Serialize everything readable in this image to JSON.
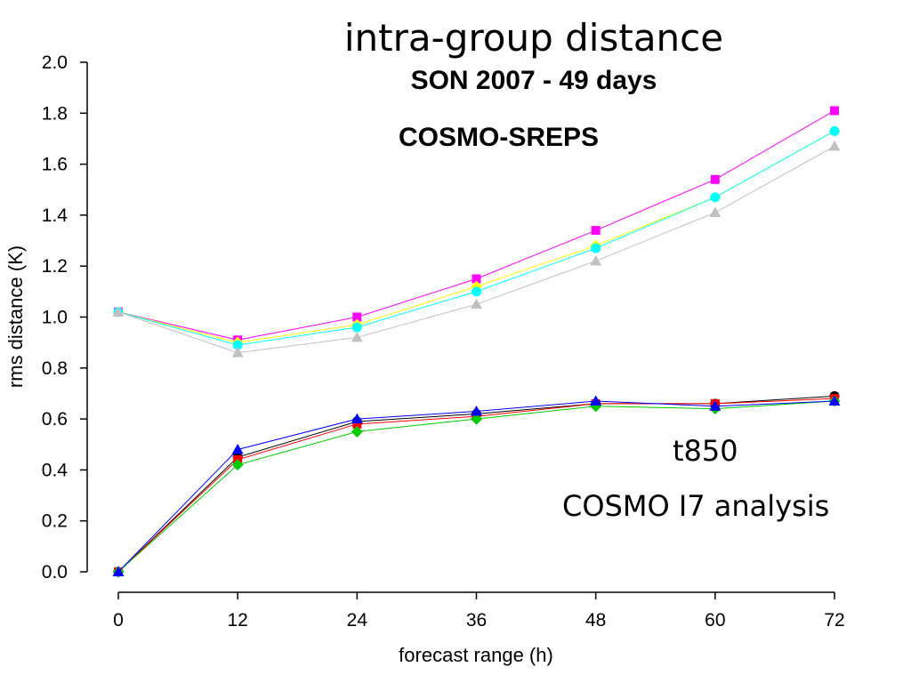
{
  "title": "intra-group distance",
  "subtitle": "SON 2007 - 49 days",
  "annotations": {
    "system": "COSMO-SREPS",
    "variable": "t850",
    "analysis": "COSMO I7 analysis"
  },
  "chart_data": {
    "type": "line",
    "xlabel": "forecast range (h)",
    "ylabel": "rms distance (K)",
    "x": [
      0,
      12,
      24,
      36,
      48,
      60,
      72
    ],
    "xlim": [
      0,
      72
    ],
    "ylim": [
      0,
      2
    ],
    "yticks": [
      "0.0",
      "0.2",
      "0.4",
      "0.6",
      "0.8",
      "1.0",
      "1.2",
      "1.4",
      "1.6",
      "1.8",
      "2.0"
    ],
    "xticks": [
      "0",
      "12",
      "24",
      "36",
      "48",
      "60",
      "72"
    ],
    "grid": false,
    "series": [
      {
        "color": "#ff00ff",
        "marker": "square",
        "values": [
          1.02,
          0.91,
          1.0,
          1.15,
          1.34,
          1.54,
          1.81
        ]
      },
      {
        "color": "#ffff00",
        "marker": "diamond",
        "values": [
          1.02,
          0.9,
          0.97,
          1.12,
          1.28,
          1.47,
          1.73
        ]
      },
      {
        "color": "#00ffff",
        "marker": "circle",
        "values": [
          1.02,
          0.89,
          0.96,
          1.1,
          1.27,
          1.47,
          1.73
        ]
      },
      {
        "color": "#c0c0c0",
        "marker": "triangle",
        "values": [
          1.02,
          0.86,
          0.92,
          1.05,
          1.22,
          1.41,
          1.67
        ]
      },
      {
        "color": "#000000",
        "marker": "circle",
        "values": [
          0.0,
          0.45,
          0.59,
          0.62,
          0.66,
          0.66,
          0.69
        ]
      },
      {
        "color": "#ff0000",
        "marker": "square",
        "values": [
          0.0,
          0.44,
          0.58,
          0.61,
          0.66,
          0.66,
          0.68
        ]
      },
      {
        "color": "#00cc00",
        "marker": "diamond",
        "values": [
          0.0,
          0.42,
          0.55,
          0.6,
          0.65,
          0.64,
          0.67
        ]
      },
      {
        "color": "#0000ff",
        "marker": "triangle",
        "values": [
          0.0,
          0.48,
          0.6,
          0.63,
          0.67,
          0.65,
          0.67
        ]
      }
    ]
  }
}
